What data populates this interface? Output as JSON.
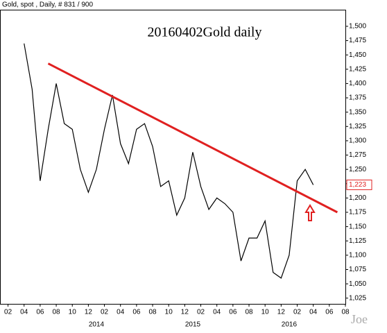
{
  "chart_data": {
    "type": "line",
    "header": "Gold, spot , Daily, # 831 / 900",
    "title": "20160402Gold daily",
    "watermark": "Joe",
    "x": [
      "2013-04",
      "2013-05",
      "2013-06",
      "2013-07",
      "2013-08",
      "2013-09",
      "2013-10",
      "2013-11",
      "2013-12",
      "2014-01",
      "2014-02",
      "2014-03",
      "2014-04",
      "2014-05",
      "2014-06",
      "2014-07",
      "2014-08",
      "2014-09",
      "2014-10",
      "2014-11",
      "2014-12",
      "2015-01",
      "2015-02",
      "2015-03",
      "2015-04",
      "2015-05",
      "2015-06",
      "2015-07",
      "2015-08",
      "2015-09",
      "2015-10",
      "2015-11",
      "2015-12",
      "2016-01",
      "2016-02",
      "2016-03",
      "2016-04"
    ],
    "series": [
      {
        "name": "Gold",
        "color": "#000000",
        "values": [
          1470,
          1390,
          1230,
          1320,
          1400,
          1330,
          1320,
          1250,
          1210,
          1250,
          1320,
          1380,
          1295,
          1260,
          1320,
          1330,
          1290,
          1220,
          1230,
          1170,
          1200,
          1280,
          1220,
          1180,
          1200,
          1190,
          1175,
          1090,
          1130,
          1130,
          1160,
          1070,
          1060,
          1100,
          1230,
          1250,
          1223
        ],
        "last_value": 1223,
        "last_value_label": "1,223"
      }
    ],
    "trendline": {
      "color": "#e02020",
      "x": [
        "2013-07",
        "2016-07"
      ],
      "values": [
        1435,
        1175
      ]
    },
    "xlim": [
      "2013-01",
      "2016-08"
    ],
    "xticks": [
      {
        "value": "2013-02",
        "label": "02"
      },
      {
        "value": "2013-04",
        "label": "04"
      },
      {
        "value": "2013-06",
        "label": "06"
      },
      {
        "value": "2013-08",
        "label": "08"
      },
      {
        "value": "2013-10",
        "label": "10"
      },
      {
        "value": "2013-12",
        "label": "12"
      },
      {
        "value": "2014-02",
        "label": "02"
      },
      {
        "value": "2014-04",
        "label": "04"
      },
      {
        "value": "2014-06",
        "label": "06"
      },
      {
        "value": "2014-08",
        "label": "08"
      },
      {
        "value": "2014-10",
        "label": "10"
      },
      {
        "value": "2014-12",
        "label": "12"
      },
      {
        "value": "2015-02",
        "label": "02"
      },
      {
        "value": "2015-04",
        "label": "04"
      },
      {
        "value": "2015-06",
        "label": "06"
      },
      {
        "value": "2015-08",
        "label": "08"
      },
      {
        "value": "2015-10",
        "label": "10"
      },
      {
        "value": "2015-12",
        "label": "12"
      },
      {
        "value": "2016-02",
        "label": "02"
      },
      {
        "value": "2016-04",
        "label": "04"
      },
      {
        "value": "2016-06",
        "label": "06"
      },
      {
        "value": "2016-08",
        "label": "08"
      }
    ],
    "year_labels": [
      {
        "value": "2014-01",
        "label": "2014"
      },
      {
        "value": "2015-01",
        "label": "2015"
      },
      {
        "value": "2016-01",
        "label": "2016"
      }
    ],
    "ylim": [
      1015,
      1529
    ],
    "yticks": [
      {
        "value": 1025,
        "label": "1,025"
      },
      {
        "value": 1050,
        "label": "1,050"
      },
      {
        "value": 1075,
        "label": "1,075"
      },
      {
        "value": 1100,
        "label": "1,100"
      },
      {
        "value": 1125,
        "label": "1,125"
      },
      {
        "value": 1150,
        "label": "1,150"
      },
      {
        "value": 1175,
        "label": "1,175"
      },
      {
        "value": 1200,
        "label": "1,200"
      },
      {
        "value": 1225,
        "label": "1,225"
      },
      {
        "value": 1250,
        "label": "1,250"
      },
      {
        "value": 1275,
        "label": "1,275"
      },
      {
        "value": 1300,
        "label": "1,300"
      },
      {
        "value": 1325,
        "label": "1,325"
      },
      {
        "value": 1350,
        "label": "1,350"
      },
      {
        "value": 1375,
        "label": "1,375"
      },
      {
        "value": 1400,
        "label": "1,400"
      },
      {
        "value": 1425,
        "label": "1,425"
      },
      {
        "value": 1450,
        "label": "1,450"
      },
      {
        "value": 1475,
        "label": "1,475"
      },
      {
        "value": 1500,
        "label": "1,500"
      }
    ],
    "grid": false
  }
}
